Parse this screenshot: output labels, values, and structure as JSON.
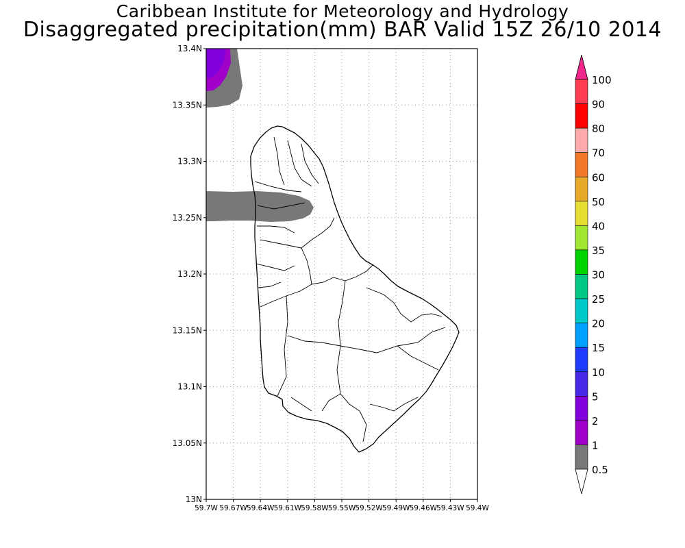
{
  "title": "Caribbean Institute for Meteorology and Hydrology",
  "subtitle": "Disaggregated precipitation(mm) BAR Valid 15Z 26/10 2014",
  "map": {
    "y_ticks": [
      "13.4N",
      "13.35N",
      "13.3N",
      "13.25N",
      "13.2N",
      "13.15N",
      "13.1N",
      "13.05N",
      "13N"
    ],
    "x_ticks": [
      "59.7W",
      "59.67W",
      "59.64W",
      "59.61W",
      "59.58W",
      "59.55W",
      "59.52W",
      "59.49W",
      "59.46W",
      "59.43W",
      "59.4W"
    ],
    "lat_range": [
      13.0,
      13.4
    ],
    "lon_range": [
      -59.7,
      -59.4
    ],
    "grid": "dotted"
  },
  "legend": {
    "labels": [
      "100",
      "90",
      "80",
      "70",
      "60",
      "50",
      "40",
      "35",
      "30",
      "25",
      "20",
      "15",
      "10",
      "5",
      "2",
      "1",
      "0.5"
    ],
    "colors": [
      "#ff3c50",
      "#ff0000",
      "#ffaaaa",
      "#f07828",
      "#e6aa28",
      "#e6dc32",
      "#a0e632",
      "#00d200",
      "#00c882",
      "#00c8c8",
      "#00a0ff",
      "#1e3cff",
      "#4628e6",
      "#8200dc",
      "#a000c8",
      "#787878"
    ],
    "top_arrow_color": "#f0288c",
    "bottom_arrow_color": "#ffffff"
  },
  "precip_areas": [
    {
      "name": "northwest-corner",
      "colors": [
        "#787878",
        "#a000c8",
        "#8200dc"
      ]
    },
    {
      "name": "west-coast-band",
      "colors": [
        "#787878"
      ]
    }
  ]
}
